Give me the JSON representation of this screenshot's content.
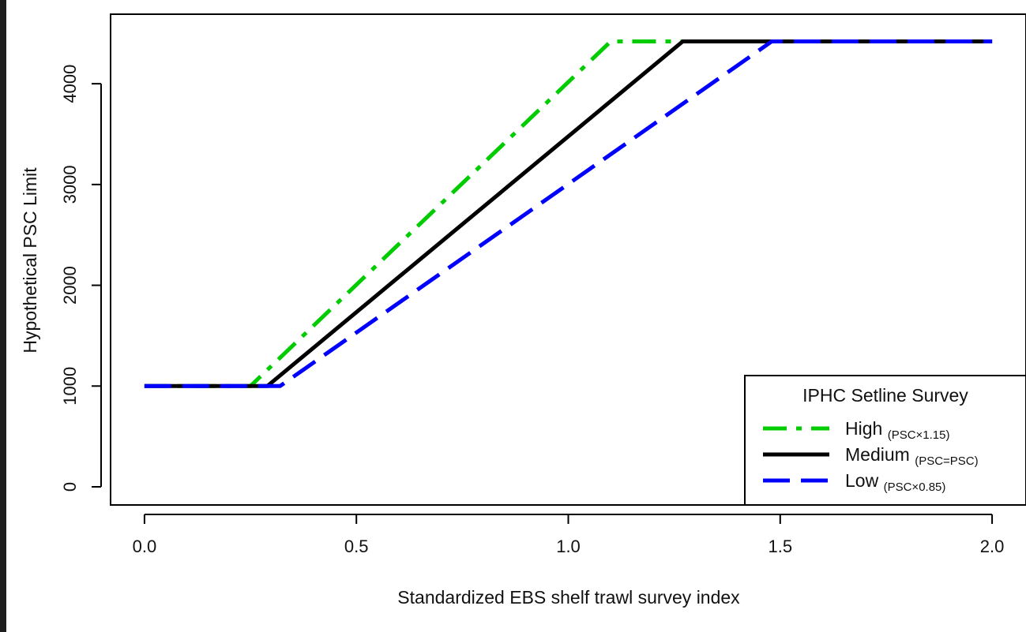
{
  "chart_data": {
    "type": "line",
    "title": "",
    "xlabel": "Standardized EBS shelf trawl survey index",
    "ylabel": "Hypothetical PSC Limit",
    "xlim": [
      -0.08,
      2.08
    ],
    "ylim": [
      -180,
      4690
    ],
    "xticks": [
      0.0,
      0.5,
      1.0,
      1.5,
      2.0
    ],
    "xtick_labels": [
      "0.0",
      "0.5",
      "1.0",
      "1.5",
      "2.0"
    ],
    "yticks": [
      0,
      1000,
      2000,
      3000,
      4000
    ],
    "ytick_labels": [
      "0",
      "1000",
      "2000",
      "3000",
      "4000"
    ],
    "grid": false,
    "legend": {
      "title": "IPHC Setline Survey",
      "position": "bottom-right"
    },
    "series": [
      {
        "name": "High",
        "subscript": "(PSC×1.15)",
        "color": "#00cc00",
        "style": "dashdot",
        "x": [
          0.0,
          0.25,
          1.1,
          2.0
        ],
        "y": [
          1000,
          1000,
          4420,
          4420
        ]
      },
      {
        "name": "Medium",
        "subscript": "(PSC=PSC)",
        "color": "#000000",
        "style": "solid",
        "x": [
          0.0,
          0.29,
          1.27,
          2.0
        ],
        "y": [
          1000,
          1000,
          4420,
          4420
        ]
      },
      {
        "name": "Low",
        "subscript": "(PSC×0.85)",
        "color": "#0000ff",
        "style": "dashed",
        "x": [
          0.0,
          0.32,
          1.48,
          2.0
        ],
        "y": [
          1000,
          1000,
          4420,
          4420
        ]
      }
    ]
  }
}
